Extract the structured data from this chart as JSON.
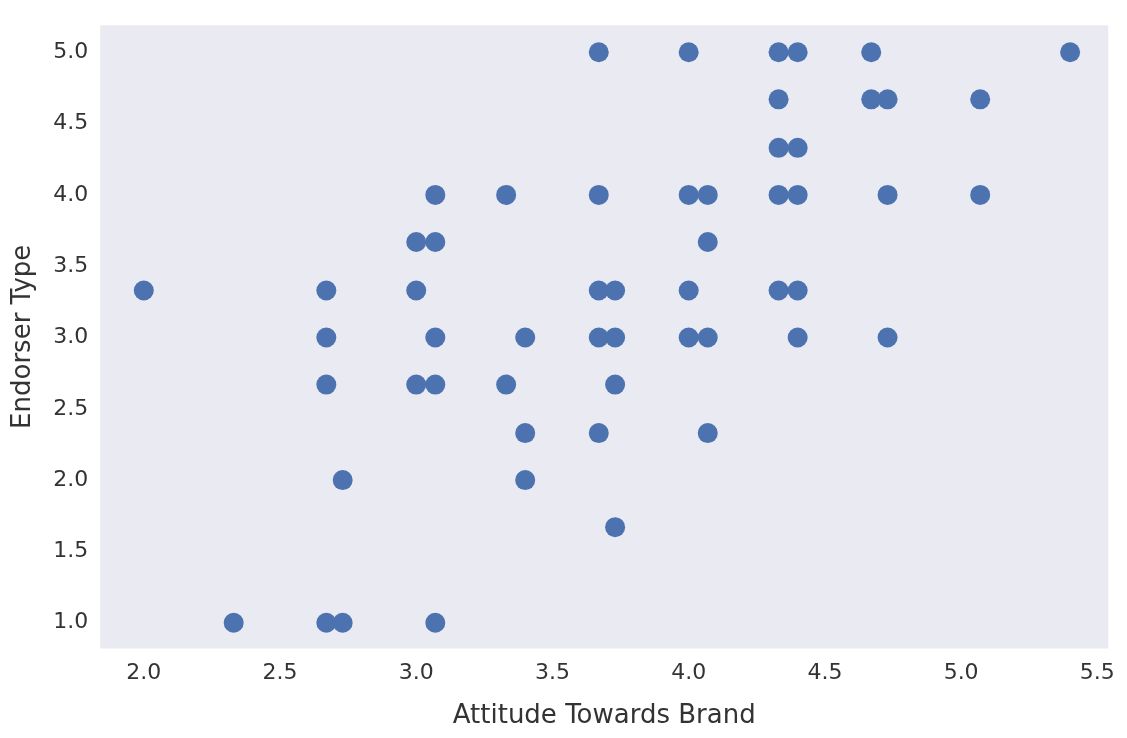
{
  "chart_data": {
    "type": "scatter",
    "xlabel": "Attitude Towards Brand",
    "ylabel": "Endorser Type",
    "xlim": [
      1.84,
      5.54
    ],
    "xticks": [
      {
        "value": 2,
        "label": "2.0"
      },
      2.5,
      {
        "value": 3,
        "label": "3.0"
      },
      3.5,
      {
        "value": 4,
        "label": "4.0"
      },
      4.5,
      {
        "value": 5,
        "label": "5.0"
      },
      5.5
    ],
    "ylim": [
      0.82,
      5.19
    ],
    "yticks": [
      {
        "value": 1,
        "label": "1.0"
      },
      1.5,
      {
        "value": 2,
        "label": "2.0"
      },
      2.5,
      {
        "value": 3,
        "label": "3.0"
      },
      3.5,
      {
        "value": 4,
        "label": "4.0"
      },
      4.5,
      {
        "value": 5,
        "label": "5.0"
      }
    ],
    "grid": false,
    "marker": "circle",
    "series": [
      {
        "color": "#4c72b0",
        "x": [
          3.67,
          4.0,
          4.33,
          4.4,
          4.67,
          5.4,
          4.33,
          4.67,
          4.73,
          5.07,
          4.33,
          4.4,
          3.07,
          3.33,
          3.67,
          4.0,
          4.07,
          4.33,
          4.4,
          4.73,
          5.07,
          3.0,
          3.07,
          4.07,
          2.0,
          2.67,
          3.0,
          3.67,
          3.73,
          4.0,
          4.33,
          4.4,
          2.67,
          3.07,
          3.4,
          3.67,
          3.73,
          4.0,
          4.07,
          4.4,
          4.73,
          2.67,
          3.0,
          3.07,
          3.33,
          3.73,
          3.4,
          3.67,
          4.07,
          2.73,
          3.4,
          3.73,
          2.33,
          2.67,
          2.73,
          3.07
        ],
        "values": [
          5.0,
          5.0,
          5.0,
          5.0,
          5.0,
          5.0,
          4.67,
          4.67,
          4.67,
          4.67,
          4.33,
          4.33,
          4.0,
          4.0,
          4.0,
          4.0,
          4.0,
          4.0,
          4.0,
          4.0,
          4.0,
          3.67,
          3.67,
          3.67,
          3.33,
          3.33,
          3.33,
          3.33,
          3.33,
          3.33,
          3.33,
          3.33,
          3.0,
          3.0,
          3.0,
          3.0,
          3.0,
          3.0,
          3.0,
          3.0,
          3.0,
          2.67,
          2.67,
          2.67,
          2.67,
          2.67,
          2.33,
          2.33,
          2.33,
          2.0,
          2.0,
          1.67,
          1.0,
          1.0,
          1.0,
          1.0
        ]
      }
    ]
  }
}
